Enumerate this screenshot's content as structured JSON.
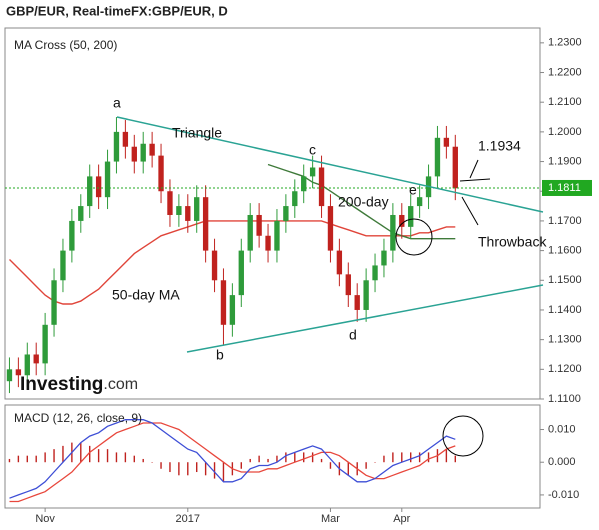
{
  "chart_data": [
    {
      "type": "candlestick",
      "title": "GBP/EUR, Real-timeFX:GBP/EUR, D",
      "subtitle": "MA Cross (50, 200)",
      "categories": [
        null,
        null,
        null,
        null,
        "Nov",
        null,
        null,
        null,
        null,
        null,
        null,
        null,
        null,
        null,
        null,
        null,
        null,
        null,
        null,
        null,
        "2017",
        null,
        null,
        null,
        null,
        null,
        null,
        null,
        null,
        null,
        null,
        null,
        null,
        null,
        null,
        null,
        "Mar",
        null,
        null,
        null,
        null,
        null,
        null,
        null,
        "Apr",
        null,
        null,
        null,
        null,
        null,
        null
      ],
      "open": [
        1.116,
        1.12,
        1.118,
        1.125,
        1.122,
        1.135,
        1.15,
        1.16,
        1.17,
        1.175,
        1.185,
        1.178,
        1.19,
        1.2,
        1.195,
        1.19,
        1.196,
        1.192,
        1.18,
        1.172,
        1.175,
        1.17,
        1.178,
        1.16,
        1.15,
        1.135,
        1.145,
        1.16,
        1.172,
        1.165,
        1.16,
        1.17,
        1.175,
        1.18,
        1.185,
        1.188,
        1.175,
        1.16,
        1.152,
        1.145,
        1.14,
        1.15,
        1.155,
        1.16,
        1.172,
        1.168,
        1.175,
        1.178,
        1.185,
        1.198,
        1.195
      ],
      "high": [
        1.124,
        1.124,
        1.129,
        1.129,
        1.139,
        1.154,
        1.164,
        1.174,
        1.179,
        1.189,
        1.189,
        1.194,
        1.205,
        1.204,
        1.199,
        1.2,
        1.2,
        1.196,
        1.184,
        1.179,
        1.179,
        1.182,
        1.182,
        1.164,
        1.154,
        1.149,
        1.164,
        1.176,
        1.176,
        1.169,
        1.174,
        1.179,
        1.184,
        1.189,
        1.192,
        1.192,
        1.179,
        1.164,
        1.156,
        1.149,
        1.154,
        1.159,
        1.164,
        1.176,
        1.176,
        1.179,
        1.182,
        1.189,
        1.202,
        1.202,
        1.199
      ],
      "low": [
        1.112,
        1.114,
        1.114,
        1.118,
        1.118,
        1.131,
        1.146,
        1.156,
        1.166,
        1.171,
        1.174,
        1.174,
        1.186,
        1.191,
        1.186,
        1.186,
        1.188,
        1.176,
        1.168,
        1.168,
        1.166,
        1.166,
        1.156,
        1.146,
        1.128,
        1.131,
        1.141,
        1.156,
        1.161,
        1.156,
        1.156,
        1.166,
        1.171,
        1.176,
        1.181,
        1.171,
        1.156,
        1.148,
        1.141,
        1.136,
        1.136,
        1.146,
        1.151,
        1.156,
        1.164,
        1.164,
        1.171,
        1.174,
        1.181,
        1.191,
        1.177
      ],
      "close": [
        1.12,
        1.118,
        1.125,
        1.122,
        1.135,
        1.15,
        1.16,
        1.17,
        1.175,
        1.185,
        1.178,
        1.19,
        1.2,
        1.195,
        1.19,
        1.196,
        1.192,
        1.18,
        1.172,
        1.175,
        1.17,
        1.178,
        1.16,
        1.15,
        1.135,
        1.145,
        1.16,
        1.172,
        1.165,
        1.16,
        1.17,
        1.175,
        1.18,
        1.185,
        1.188,
        1.175,
        1.16,
        1.152,
        1.145,
        1.14,
        1.15,
        1.155,
        1.16,
        1.172,
        1.168,
        1.175,
        1.178,
        1.185,
        1.198,
        1.195,
        1.181
      ],
      "up_color": "#2e9b3a",
      "down_color": "#c0221e",
      "series": [
        {
          "name": "50-day MA",
          "color": "#e0453a",
          "values": [
            1.157,
            1.154,
            1.151,
            1.148,
            1.145,
            1.143,
            1.142,
            1.142,
            1.143,
            1.145,
            1.147,
            1.15,
            1.153,
            1.156,
            1.159,
            1.161,
            1.163,
            1.165,
            1.166,
            1.167,
            1.168,
            1.169,
            1.17,
            1.17,
            1.17,
            1.17,
            1.17,
            1.17,
            1.17,
            1.17,
            1.17,
            1.17,
            1.17,
            1.17,
            1.17,
            1.17,
            1.169,
            1.168,
            1.167,
            1.166,
            1.165,
            1.165,
            1.165,
            1.165,
            1.165,
            1.165,
            1.166,
            1.166,
            1.167,
            1.168,
            1.168
          ]
        },
        {
          "name": "200-day",
          "color": "#3f7a3a",
          "values": [
            null,
            null,
            null,
            null,
            null,
            null,
            null,
            null,
            null,
            null,
            null,
            null,
            null,
            null,
            null,
            null,
            null,
            null,
            null,
            null,
            null,
            null,
            null,
            null,
            null,
            null,
            null,
            null,
            null,
            1.189,
            1.188,
            1.187,
            1.186,
            1.185,
            1.183,
            1.182,
            1.18,
            1.178,
            1.176,
            1.174,
            1.172,
            1.17,
            1.168,
            1.166,
            1.165,
            1.164,
            1.164,
            1.164,
            1.164,
            1.164,
            1.164
          ]
        }
      ],
      "last_price": {
        "value": 1.1811,
        "label": "1.1811",
        "color": "#21a821"
      },
      "ylim": [
        1.11,
        1.235
      ],
      "yticks": [
        {
          "value": 1.11,
          "label": "1.1100"
        },
        {
          "value": 1.12,
          "label": "1.1200"
        },
        {
          "value": 1.13,
          "label": "1.1300"
        },
        {
          "value": 1.14,
          "label": "1.1400"
        },
        {
          "value": 1.15,
          "label": "1.1500"
        },
        {
          "value": 1.16,
          "label": "1.1600"
        },
        {
          "value": 1.17,
          "label": "1.1700"
        },
        {
          "value": 1.18,
          "label": "1.1800"
        },
        {
          "value": 1.19,
          "label": "1.1900"
        },
        {
          "value": 1.2,
          "label": "1.2000"
        },
        {
          "value": 1.21,
          "label": "1.2100"
        },
        {
          "value": 1.22,
          "label": "1.2200"
        },
        {
          "value": 1.23,
          "label": "1.2300"
        }
      ],
      "annotations": {
        "triangle": "Triangle",
        "a": "a",
        "b": "b",
        "c": "c",
        "d": "d",
        "e": "e",
        "level": "1.1934",
        "throwback": "Throwback"
      },
      "brand": {
        "name": "Investing",
        "suffix": ".com"
      }
    },
    {
      "type": "macd",
      "title": "MACD (12, 26, close, 9)",
      "macd": [
        -0.011,
        -0.01,
        -0.009,
        -0.008,
        -0.006,
        -0.003,
        0.0,
        0.003,
        0.006,
        0.008,
        0.009,
        0.011,
        0.012,
        0.013,
        0.013,
        0.013,
        0.012,
        0.01,
        0.008,
        0.006,
        0.004,
        0.003,
        0.0,
        -0.003,
        -0.006,
        -0.006,
        -0.005,
        -0.002,
        -0.001,
        -0.001,
        0.0,
        0.002,
        0.003,
        0.004,
        0.005,
        0.004,
        0.001,
        -0.002,
        -0.004,
        -0.006,
        -0.006,
        -0.005,
        -0.003,
        -0.001,
        0.0,
        0.001,
        0.002,
        0.004,
        0.006,
        0.008,
        0.007
      ],
      "signal": [
        -0.012,
        -0.012,
        -0.011,
        -0.01,
        -0.009,
        -0.007,
        -0.005,
        -0.003,
        0.0,
        0.003,
        0.005,
        0.007,
        0.009,
        0.01,
        0.011,
        0.012,
        0.012,
        0.012,
        0.011,
        0.01,
        0.008,
        0.006,
        0.004,
        0.002,
        0.0,
        -0.002,
        -0.003,
        -0.003,
        -0.003,
        -0.002,
        -0.002,
        -0.001,
        0.0,
        0.001,
        0.002,
        0.003,
        0.003,
        0.002,
        0.0,
        -0.002,
        -0.004,
        -0.005,
        -0.005,
        -0.004,
        -0.003,
        -0.002,
        -0.001,
        0.001,
        0.002,
        0.004,
        0.005
      ],
      "histogram": [
        0.001,
        0.002,
        0.002,
        0.002,
        0.003,
        0.004,
        0.005,
        0.006,
        0.006,
        0.005,
        0.004,
        0.004,
        0.003,
        0.003,
        0.002,
        0.001,
        0,
        -0.002,
        -0.003,
        -0.004,
        -0.004,
        -0.003,
        -0.004,
        -0.005,
        -0.006,
        -0.004,
        -0.002,
        0.001,
        0.002,
        0.001,
        0.002,
        0.003,
        0.003,
        0.003,
        0.003,
        0.001,
        -0.002,
        -0.004,
        -0.004,
        -0.004,
        -0.002,
        0,
        0.002,
        0.003,
        0.003,
        0.003,
        0.003,
        0.003,
        0.004,
        0.004,
        0.002
      ],
      "macd_color": "#3d4ed6",
      "signal_color": "#e8473c",
      "histogram_color": "#c0221e",
      "ylim": [
        -0.014,
        0.0175
      ],
      "yticks": [
        {
          "value": -0.01,
          "label": "-0.010"
        },
        {
          "value": 0,
          "label": "0.000"
        },
        {
          "value": 0.01,
          "label": "0.010"
        }
      ]
    }
  ]
}
